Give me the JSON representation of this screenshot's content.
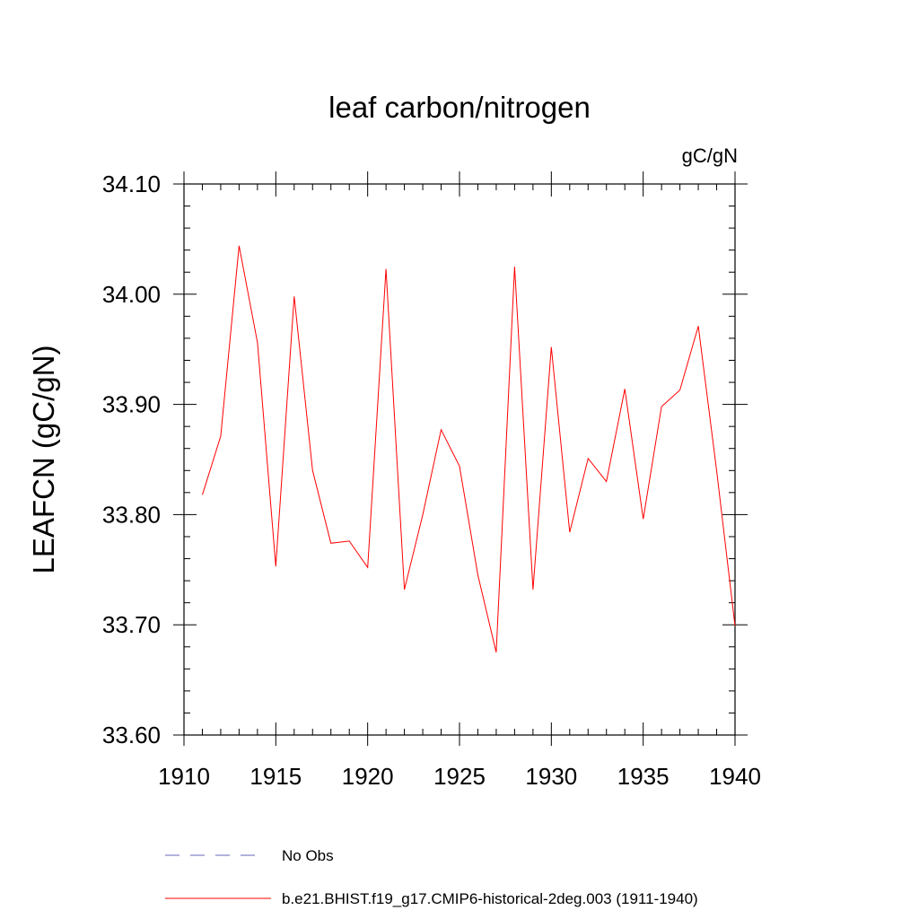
{
  "chart_data": {
    "type": "line",
    "title": "leaf carbon/nitrogen",
    "units": "gC/gN",
    "ylabel": "LEAFCN  (gC/gN)",
    "xlabel": "",
    "xlim": [
      1910,
      1940
    ],
    "ylim": [
      33.6,
      34.1
    ],
    "xticks": [
      1910,
      1915,
      1920,
      1925,
      1930,
      1935,
      1940
    ],
    "yticks": [
      33.6,
      33.7,
      33.8,
      33.9,
      34.0,
      34.1
    ],
    "xtick_labels": [
      "1910",
      "1915",
      "1920",
      "1925",
      "1930",
      "1935",
      "1940"
    ],
    "ytick_labels": [
      "33.60",
      "33.70",
      "33.80",
      "33.90",
      "34.00",
      "34.10"
    ],
    "grid": false,
    "legend_position": "bottom",
    "series": [
      {
        "name": "b.e21.BHIST.f19_g17.CMIP6-historical-2deg.003 (1911-1940)",
        "color": "#ff0000",
        "x": [
          1911,
          1912,
          1913,
          1914,
          1915,
          1916,
          1917,
          1918,
          1919,
          1920,
          1921,
          1922,
          1923,
          1924,
          1925,
          1926,
          1927,
          1928,
          1929,
          1930,
          1931,
          1932,
          1933,
          1934,
          1935,
          1936,
          1937,
          1938,
          1939,
          1940
        ],
        "y": [
          33.818,
          33.871,
          34.044,
          33.956,
          33.753,
          33.998,
          33.84,
          33.774,
          33.776,
          33.752,
          34.023,
          33.732,
          33.8,
          33.877,
          33.844,
          33.745,
          33.675,
          34.025,
          33.732,
          33.952,
          33.784,
          33.851,
          33.83,
          33.914,
          33.796,
          33.898,
          33.913,
          33.971,
          33.84,
          33.699
        ]
      }
    ],
    "legend": [
      {
        "label": "No Obs",
        "style": "dashed",
        "color": "#6666bb"
      },
      {
        "label": "b.e21.BHIST.f19_g17.CMIP6-historical-2deg.003 (1911-1940)",
        "style": "solid",
        "color": "#ff0000"
      }
    ]
  }
}
